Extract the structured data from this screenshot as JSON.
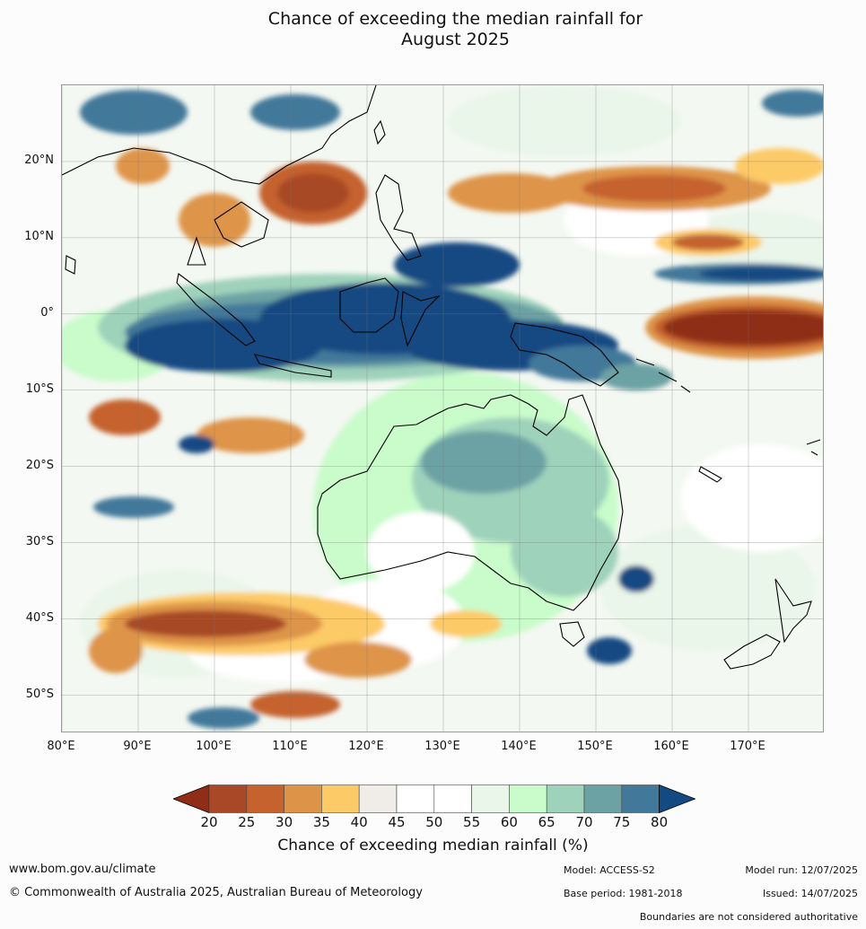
{
  "title": {
    "line1": "Chance of exceeding the median rainfall for",
    "line2": "August 2025"
  },
  "map": {
    "lon_range": [
      80,
      180
    ],
    "lat_range": [
      -55,
      30
    ],
    "lat_ticks": [
      {
        "value": 20,
        "label": "20°N"
      },
      {
        "value": 10,
        "label": "10°N"
      },
      {
        "value": 0,
        "label": "0°"
      },
      {
        "value": -10,
        "label": "10°S"
      },
      {
        "value": -20,
        "label": "20°S"
      },
      {
        "value": -30,
        "label": "30°S"
      },
      {
        "value": -40,
        "label": "40°S"
      },
      {
        "value": -50,
        "label": "50°S"
      }
    ],
    "lon_ticks": [
      {
        "value": 80,
        "label": "80°E"
      },
      {
        "value": 90,
        "label": "90°E"
      },
      {
        "value": 100,
        "label": "100°E"
      },
      {
        "value": 110,
        "label": "110°E"
      },
      {
        "value": 120,
        "label": "120°E"
      },
      {
        "value": 130,
        "label": "130°E"
      },
      {
        "value": 140,
        "label": "140°E"
      },
      {
        "value": 150,
        "label": "150°E"
      },
      {
        "value": 160,
        "label": "160°E"
      },
      {
        "value": 170,
        "label": "170°E"
      }
    ]
  },
  "legend": {
    "ticks": [
      "20",
      "25",
      "30",
      "35",
      "40",
      "45",
      "50",
      "55",
      "60",
      "65",
      "70",
      "75",
      "80"
    ],
    "under_color": "#8f2d17",
    "over_color": "#134a82",
    "colors": [
      "#a84826",
      "#c5622e",
      "#de9448",
      "#fdca68",
      "#f0ede8",
      "#ffffff",
      "#ffffff",
      "#eaf6ea",
      "#c9fcca",
      "#9fd2bb",
      "#6da2a4",
      "#42789a"
    ],
    "label": "Chance of exceeding median rainfall (%)"
  },
  "footer": {
    "website": "www.bom.gov.au/climate",
    "copyright": "© Commonwealth of Australia 2025, Australian Bureau of Meteorology",
    "model": "Model: ACCESS-S2",
    "base_period": "Base period: 1981-2018",
    "model_run": "Model run: 12/07/2025",
    "issued": "Issued: 14/07/2025",
    "disclaimer": "Boundaries are not considered authoritative"
  }
}
